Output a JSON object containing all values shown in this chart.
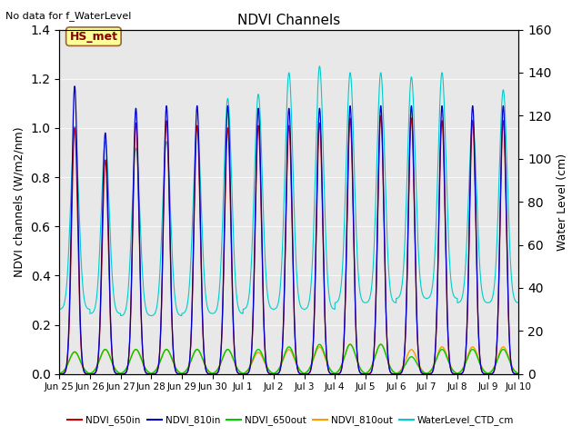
{
  "title": "NDVI Channels",
  "top_left_text": "No data for f_WaterLevel",
  "station_label": "HS_met",
  "xlabel_ticks": [
    "Jun 25",
    "Jun 26",
    "Jun 27",
    "Jun 28",
    "Jun 29",
    "Jun 30",
    "Jul 1",
    "Jul 2",
    "Jul 3",
    "Jul 4",
    "Jul 5",
    "Jul 6",
    "Jul 7",
    "Jul 8",
    "Jul 9",
    "Jul 10"
  ],
  "ylabel_left": "NDVI channels (W/m2/nm)",
  "ylabel_right": "Water Level (cm)",
  "ylim_left": [
    0,
    1.4
  ],
  "ylim_right": [
    0,
    160
  ],
  "yticks_left": [
    0.0,
    0.2,
    0.4,
    0.6,
    0.8,
    1.0,
    1.2,
    1.4
  ],
  "yticks_right": [
    0,
    20,
    40,
    60,
    80,
    100,
    120,
    140,
    160
  ],
  "colors": {
    "NDVI_650in": "#cc0000",
    "NDVI_810in": "#0000cc",
    "NDVI_650out": "#00cc00",
    "NDVI_810out": "#ff9900",
    "WaterLevel_CTD_cm": "#00cccc"
  },
  "legend_entries": [
    "NDVI_650in",
    "NDVI_810in",
    "NDVI_650out",
    "NDVI_810out",
    "WaterLevel_CTD_cm"
  ],
  "plot_bg_color": "#e8e8e8",
  "n_days": 15
}
